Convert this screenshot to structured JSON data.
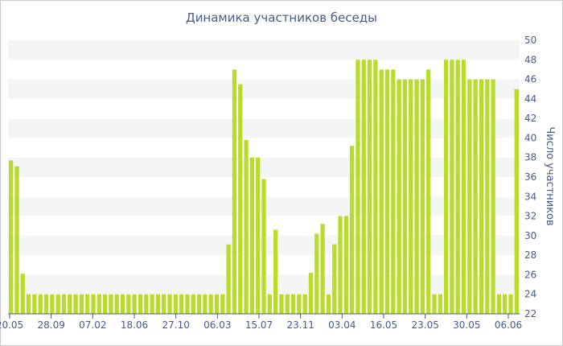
{
  "chart_data": {
    "type": "bar",
    "title": "Динамика участников беседы",
    "xlabel": "",
    "ylabel": "Число участников",
    "ylim": [
      22,
      50
    ],
    "yticks": [
      22,
      24,
      26,
      28,
      30,
      32,
      34,
      36,
      38,
      40,
      42,
      44,
      46,
      48,
      50
    ],
    "x_tick_labels": [
      "20.05",
      "28.09",
      "07.02",
      "18.06",
      "27.10",
      "06.03",
      "15.07",
      "23.11",
      "03.04",
      "16.05",
      "23.05",
      "30.05",
      "06.06"
    ],
    "grid": true,
    "bar_color": "#b8dc2c",
    "values": [
      37.7,
      37.1,
      26.1,
      24,
      24,
      24,
      24,
      24,
      24,
      24,
      24,
      24,
      24,
      24,
      24,
      24,
      24,
      24,
      24,
      24,
      24,
      24,
      24,
      24,
      24,
      24,
      24,
      24,
      24,
      24,
      24,
      24,
      24,
      24,
      24,
      24,
      24,
      29.1,
      47,
      45.5,
      39.8,
      38,
      38,
      35.8,
      24,
      30.6,
      24,
      24,
      24,
      24,
      24,
      26.2,
      30.2,
      31.2,
      24,
      29.1,
      32,
      32,
      39.2,
      48,
      48,
      48,
      48,
      47,
      47,
      47,
      46,
      46,
      46,
      46,
      46,
      47,
      24,
      24,
      48,
      48,
      48,
      48,
      46,
      46,
      46,
      46,
      46,
      24,
      24,
      24,
      45
    ]
  }
}
